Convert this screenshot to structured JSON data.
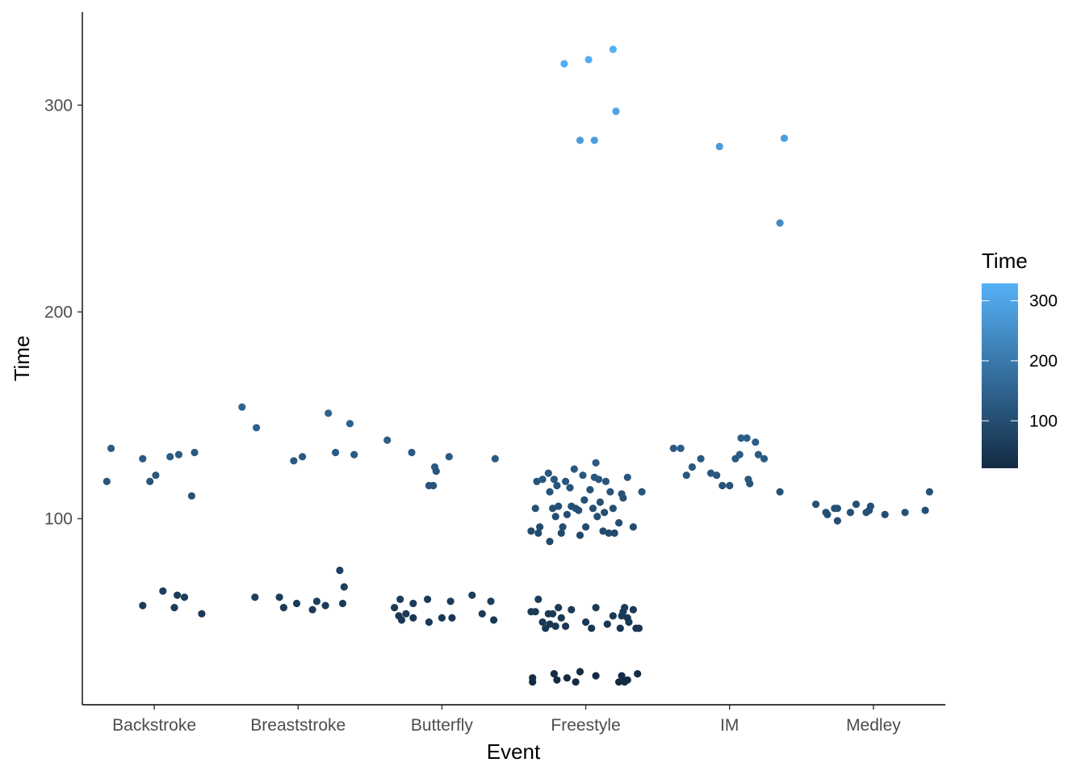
{
  "chart_data": {
    "type": "scatter",
    "title": "",
    "xlabel": "Event",
    "ylabel": "Time",
    "categories": [
      "Backstroke",
      "Breaststroke",
      "Butterfly",
      "Freestyle",
      "IM",
      "Medley"
    ],
    "ylim": [
      10,
      345
    ],
    "yticks": [
      100,
      200,
      300
    ],
    "grid": false,
    "jitter": true,
    "legend": {
      "title": "Time",
      "position": "right",
      "type": "colorbar",
      "range": [
        21,
        329
      ],
      "ticks": [
        100,
        200,
        300
      ],
      "color_low": "#132b43",
      "color_high": "#56b1f7"
    },
    "points": [
      {
        "event": "Backstroke",
        "offset": -0.33,
        "time": 118
      },
      {
        "event": "Backstroke",
        "offset": -0.3,
        "time": 134
      },
      {
        "event": "Backstroke",
        "offset": -0.08,
        "time": 129
      },
      {
        "event": "Backstroke",
        "offset": -0.03,
        "time": 118
      },
      {
        "event": "Backstroke",
        "offset": 0.01,
        "time": 121
      },
      {
        "event": "Backstroke",
        "offset": 0.11,
        "time": 130
      },
      {
        "event": "Backstroke",
        "offset": 0.17,
        "time": 131
      },
      {
        "event": "Backstroke",
        "offset": 0.26,
        "time": 111
      },
      {
        "event": "Backstroke",
        "offset": 0.28,
        "time": 132
      },
      {
        "event": "Backstroke",
        "offset": -0.08,
        "time": 58
      },
      {
        "event": "Backstroke",
        "offset": 0.06,
        "time": 65
      },
      {
        "event": "Backstroke",
        "offset": 0.14,
        "time": 57
      },
      {
        "event": "Backstroke",
        "offset": 0.16,
        "time": 63
      },
      {
        "event": "Backstroke",
        "offset": 0.21,
        "time": 62
      },
      {
        "event": "Backstroke",
        "offset": 0.33,
        "time": 54
      },
      {
        "event": "Breaststroke",
        "offset": -0.39,
        "time": 154
      },
      {
        "event": "Breaststroke",
        "offset": -0.29,
        "time": 144
      },
      {
        "event": "Breaststroke",
        "offset": -0.03,
        "time": 128
      },
      {
        "event": "Breaststroke",
        "offset": 0.03,
        "time": 130
      },
      {
        "event": "Breaststroke",
        "offset": 0.21,
        "time": 151
      },
      {
        "event": "Breaststroke",
        "offset": 0.26,
        "time": 132
      },
      {
        "event": "Breaststroke",
        "offset": 0.36,
        "time": 146
      },
      {
        "event": "Breaststroke",
        "offset": 0.39,
        "time": 131
      },
      {
        "event": "Breaststroke",
        "offset": -0.3,
        "time": 62
      },
      {
        "event": "Breaststroke",
        "offset": -0.13,
        "time": 62
      },
      {
        "event": "Breaststroke",
        "offset": -0.1,
        "time": 57
      },
      {
        "event": "Breaststroke",
        "offset": -0.01,
        "time": 59
      },
      {
        "event": "Breaststroke",
        "offset": 0.1,
        "time": 56
      },
      {
        "event": "Breaststroke",
        "offset": 0.13,
        "time": 60
      },
      {
        "event": "Breaststroke",
        "offset": 0.19,
        "time": 58
      },
      {
        "event": "Breaststroke",
        "offset": 0.29,
        "time": 75
      },
      {
        "event": "Breaststroke",
        "offset": 0.31,
        "time": 59
      },
      {
        "event": "Breaststroke",
        "offset": 0.32,
        "time": 67
      },
      {
        "event": "Butterfly",
        "offset": -0.38,
        "time": 138
      },
      {
        "event": "Butterfly",
        "offset": -0.21,
        "time": 132
      },
      {
        "event": "Butterfly",
        "offset": -0.09,
        "time": 116
      },
      {
        "event": "Butterfly",
        "offset": -0.06,
        "time": 116
      },
      {
        "event": "Butterfly",
        "offset": -0.05,
        "time": 125
      },
      {
        "event": "Butterfly",
        "offset": -0.04,
        "time": 123
      },
      {
        "event": "Butterfly",
        "offset": 0.05,
        "time": 130
      },
      {
        "event": "Butterfly",
        "offset": 0.37,
        "time": 129
      },
      {
        "event": "Butterfly",
        "offset": -0.33,
        "time": 57
      },
      {
        "event": "Butterfly",
        "offset": -0.3,
        "time": 53
      },
      {
        "event": "Butterfly",
        "offset": -0.29,
        "time": 61
      },
      {
        "event": "Butterfly",
        "offset": -0.28,
        "time": 51
      },
      {
        "event": "Butterfly",
        "offset": -0.25,
        "time": 54
      },
      {
        "event": "Butterfly",
        "offset": -0.2,
        "time": 52
      },
      {
        "event": "Butterfly",
        "offset": -0.2,
        "time": 59
      },
      {
        "event": "Butterfly",
        "offset": -0.1,
        "time": 61
      },
      {
        "event": "Butterfly",
        "offset": -0.09,
        "time": 50
      },
      {
        "event": "Butterfly",
        "offset": 0.0,
        "time": 52
      },
      {
        "event": "Butterfly",
        "offset": 0.06,
        "time": 60
      },
      {
        "event": "Butterfly",
        "offset": 0.07,
        "time": 52
      },
      {
        "event": "Butterfly",
        "offset": 0.21,
        "time": 63
      },
      {
        "event": "Butterfly",
        "offset": 0.28,
        "time": 54
      },
      {
        "event": "Butterfly",
        "offset": 0.34,
        "time": 60
      },
      {
        "event": "Butterfly",
        "offset": 0.36,
        "time": 51
      },
      {
        "event": "Freestyle",
        "offset": -0.15,
        "time": 320
      },
      {
        "event": "Freestyle",
        "offset": 0.02,
        "time": 322
      },
      {
        "event": "Freestyle",
        "offset": 0.19,
        "time": 327
      },
      {
        "event": "Freestyle",
        "offset": -0.04,
        "time": 283
      },
      {
        "event": "Freestyle",
        "offset": 0.06,
        "time": 283
      },
      {
        "event": "Freestyle",
        "offset": 0.21,
        "time": 297
      },
      {
        "event": "Freestyle",
        "offset": -0.38,
        "time": 94
      },
      {
        "event": "Freestyle",
        "offset": -0.35,
        "time": 105
      },
      {
        "event": "Freestyle",
        "offset": -0.34,
        "time": 118
      },
      {
        "event": "Freestyle",
        "offset": -0.33,
        "time": 93
      },
      {
        "event": "Freestyle",
        "offset": -0.32,
        "time": 96
      },
      {
        "event": "Freestyle",
        "offset": -0.3,
        "time": 119
      },
      {
        "event": "Freestyle",
        "offset": -0.26,
        "time": 122
      },
      {
        "event": "Freestyle",
        "offset": -0.25,
        "time": 113
      },
      {
        "event": "Freestyle",
        "offset": -0.25,
        "time": 89
      },
      {
        "event": "Freestyle",
        "offset": -0.23,
        "time": 105
      },
      {
        "event": "Freestyle",
        "offset": -0.22,
        "time": 119
      },
      {
        "event": "Freestyle",
        "offset": -0.21,
        "time": 101
      },
      {
        "event": "Freestyle",
        "offset": -0.2,
        "time": 116
      },
      {
        "event": "Freestyle",
        "offset": -0.19,
        "time": 106
      },
      {
        "event": "Freestyle",
        "offset": -0.17,
        "time": 93
      },
      {
        "event": "Freestyle",
        "offset": -0.16,
        "time": 96
      },
      {
        "event": "Freestyle",
        "offset": -0.14,
        "time": 118
      },
      {
        "event": "Freestyle",
        "offset": -0.13,
        "time": 102
      },
      {
        "event": "Freestyle",
        "offset": -0.11,
        "time": 115
      },
      {
        "event": "Freestyle",
        "offset": -0.1,
        "time": 106
      },
      {
        "event": "Freestyle",
        "offset": -0.08,
        "time": 124
      },
      {
        "event": "Freestyle",
        "offset": -0.07,
        "time": 105
      },
      {
        "event": "Freestyle",
        "offset": -0.05,
        "time": 104
      },
      {
        "event": "Freestyle",
        "offset": -0.04,
        "time": 92
      },
      {
        "event": "Freestyle",
        "offset": -0.02,
        "time": 121
      },
      {
        "event": "Freestyle",
        "offset": -0.01,
        "time": 109
      },
      {
        "event": "Freestyle",
        "offset": 0.0,
        "time": 96
      },
      {
        "event": "Freestyle",
        "offset": 0.03,
        "time": 114
      },
      {
        "event": "Freestyle",
        "offset": 0.05,
        "time": 105
      },
      {
        "event": "Freestyle",
        "offset": 0.06,
        "time": 120
      },
      {
        "event": "Freestyle",
        "offset": 0.07,
        "time": 127
      },
      {
        "event": "Freestyle",
        "offset": 0.08,
        "time": 101
      },
      {
        "event": "Freestyle",
        "offset": 0.09,
        "time": 119
      },
      {
        "event": "Freestyle",
        "offset": 0.1,
        "time": 108
      },
      {
        "event": "Freestyle",
        "offset": 0.12,
        "time": 94
      },
      {
        "event": "Freestyle",
        "offset": 0.13,
        "time": 103
      },
      {
        "event": "Freestyle",
        "offset": 0.14,
        "time": 118
      },
      {
        "event": "Freestyle",
        "offset": 0.16,
        "time": 93
      },
      {
        "event": "Freestyle",
        "offset": 0.17,
        "time": 113
      },
      {
        "event": "Freestyle",
        "offset": 0.19,
        "time": 105
      },
      {
        "event": "Freestyle",
        "offset": 0.2,
        "time": 93
      },
      {
        "event": "Freestyle",
        "offset": 0.23,
        "time": 98
      },
      {
        "event": "Freestyle",
        "offset": 0.25,
        "time": 112
      },
      {
        "event": "Freestyle",
        "offset": 0.26,
        "time": 110
      },
      {
        "event": "Freestyle",
        "offset": 0.29,
        "time": 120
      },
      {
        "event": "Freestyle",
        "offset": 0.33,
        "time": 96
      },
      {
        "event": "Freestyle",
        "offset": 0.39,
        "time": 113
      },
      {
        "event": "Freestyle",
        "offset": -0.38,
        "time": 55
      },
      {
        "event": "Freestyle",
        "offset": -0.35,
        "time": 55
      },
      {
        "event": "Freestyle",
        "offset": -0.33,
        "time": 61
      },
      {
        "event": "Freestyle",
        "offset": -0.3,
        "time": 50
      },
      {
        "event": "Freestyle",
        "offset": -0.28,
        "time": 47
      },
      {
        "event": "Freestyle",
        "offset": -0.26,
        "time": 54
      },
      {
        "event": "Freestyle",
        "offset": -0.25,
        "time": 49
      },
      {
        "event": "Freestyle",
        "offset": -0.23,
        "time": 54
      },
      {
        "event": "Freestyle",
        "offset": -0.21,
        "time": 48
      },
      {
        "event": "Freestyle",
        "offset": -0.19,
        "time": 57
      },
      {
        "event": "Freestyle",
        "offset": -0.17,
        "time": 52
      },
      {
        "event": "Freestyle",
        "offset": -0.14,
        "time": 48
      },
      {
        "event": "Freestyle",
        "offset": -0.1,
        "time": 56
      },
      {
        "event": "Freestyle",
        "offset": 0.0,
        "time": 50
      },
      {
        "event": "Freestyle",
        "offset": 0.04,
        "time": 47
      },
      {
        "event": "Freestyle",
        "offset": 0.07,
        "time": 57
      },
      {
        "event": "Freestyle",
        "offset": 0.15,
        "time": 49
      },
      {
        "event": "Freestyle",
        "offset": 0.19,
        "time": 53
      },
      {
        "event": "Freestyle",
        "offset": 0.24,
        "time": 47
      },
      {
        "event": "Freestyle",
        "offset": 0.25,
        "time": 53
      },
      {
        "event": "Freestyle",
        "offset": 0.26,
        "time": 55
      },
      {
        "event": "Freestyle",
        "offset": 0.27,
        "time": 57
      },
      {
        "event": "Freestyle",
        "offset": 0.29,
        "time": 52
      },
      {
        "event": "Freestyle",
        "offset": 0.3,
        "time": 50
      },
      {
        "event": "Freestyle",
        "offset": 0.33,
        "time": 56
      },
      {
        "event": "Freestyle",
        "offset": 0.35,
        "time": 47
      },
      {
        "event": "Freestyle",
        "offset": 0.37,
        "time": 47
      },
      {
        "event": "Freestyle",
        "offset": -0.37,
        "time": 21
      },
      {
        "event": "Freestyle",
        "offset": -0.37,
        "time": 23
      },
      {
        "event": "Freestyle",
        "offset": -0.22,
        "time": 25
      },
      {
        "event": "Freestyle",
        "offset": -0.2,
        "time": 22
      },
      {
        "event": "Freestyle",
        "offset": -0.13,
        "time": 23
      },
      {
        "event": "Freestyle",
        "offset": -0.07,
        "time": 21
      },
      {
        "event": "Freestyle",
        "offset": -0.04,
        "time": 26
      },
      {
        "event": "Freestyle",
        "offset": 0.07,
        "time": 24
      },
      {
        "event": "Freestyle",
        "offset": 0.23,
        "time": 21
      },
      {
        "event": "Freestyle",
        "offset": 0.25,
        "time": 24
      },
      {
        "event": "Freestyle",
        "offset": 0.27,
        "time": 21
      },
      {
        "event": "Freestyle",
        "offset": 0.29,
        "time": 22
      },
      {
        "event": "Freestyle",
        "offset": 0.36,
        "time": 25
      },
      {
        "event": "IM",
        "offset": -0.07,
        "time": 280
      },
      {
        "event": "IM",
        "offset": 0.38,
        "time": 284
      },
      {
        "event": "IM",
        "offset": 0.35,
        "time": 243
      },
      {
        "event": "IM",
        "offset": -0.39,
        "time": 134
      },
      {
        "event": "IM",
        "offset": -0.34,
        "time": 134
      },
      {
        "event": "IM",
        "offset": -0.3,
        "time": 121
      },
      {
        "event": "IM",
        "offset": -0.26,
        "time": 125
      },
      {
        "event": "IM",
        "offset": -0.2,
        "time": 129
      },
      {
        "event": "IM",
        "offset": -0.13,
        "time": 122
      },
      {
        "event": "IM",
        "offset": -0.09,
        "time": 121
      },
      {
        "event": "IM",
        "offset": -0.05,
        "time": 116
      },
      {
        "event": "IM",
        "offset": 0.0,
        "time": 116
      },
      {
        "event": "IM",
        "offset": 0.04,
        "time": 129
      },
      {
        "event": "IM",
        "offset": 0.07,
        "time": 131
      },
      {
        "event": "IM",
        "offset": 0.08,
        "time": 139
      },
      {
        "event": "IM",
        "offset": 0.12,
        "time": 139
      },
      {
        "event": "IM",
        "offset": 0.13,
        "time": 119
      },
      {
        "event": "IM",
        "offset": 0.14,
        "time": 117
      },
      {
        "event": "IM",
        "offset": 0.18,
        "time": 137
      },
      {
        "event": "IM",
        "offset": 0.2,
        "time": 131
      },
      {
        "event": "IM",
        "offset": 0.24,
        "time": 129
      },
      {
        "event": "IM",
        "offset": 0.35,
        "time": 113
      },
      {
        "event": "Medley",
        "offset": -0.4,
        "time": 107
      },
      {
        "event": "Medley",
        "offset": -0.33,
        "time": 103
      },
      {
        "event": "Medley",
        "offset": -0.32,
        "time": 102
      },
      {
        "event": "Medley",
        "offset": -0.27,
        "time": 105
      },
      {
        "event": "Medley",
        "offset": -0.25,
        "time": 105
      },
      {
        "event": "Medley",
        "offset": -0.25,
        "time": 99
      },
      {
        "event": "Medley",
        "offset": -0.16,
        "time": 103
      },
      {
        "event": "Medley",
        "offset": -0.12,
        "time": 107
      },
      {
        "event": "Medley",
        "offset": -0.05,
        "time": 103
      },
      {
        "event": "Medley",
        "offset": -0.03,
        "time": 104
      },
      {
        "event": "Medley",
        "offset": -0.02,
        "time": 106
      },
      {
        "event": "Medley",
        "offset": 0.08,
        "time": 102
      },
      {
        "event": "Medley",
        "offset": 0.22,
        "time": 103
      },
      {
        "event": "Medley",
        "offset": 0.36,
        "time": 104
      },
      {
        "event": "Medley",
        "offset": 0.39,
        "time": 113
      }
    ]
  }
}
